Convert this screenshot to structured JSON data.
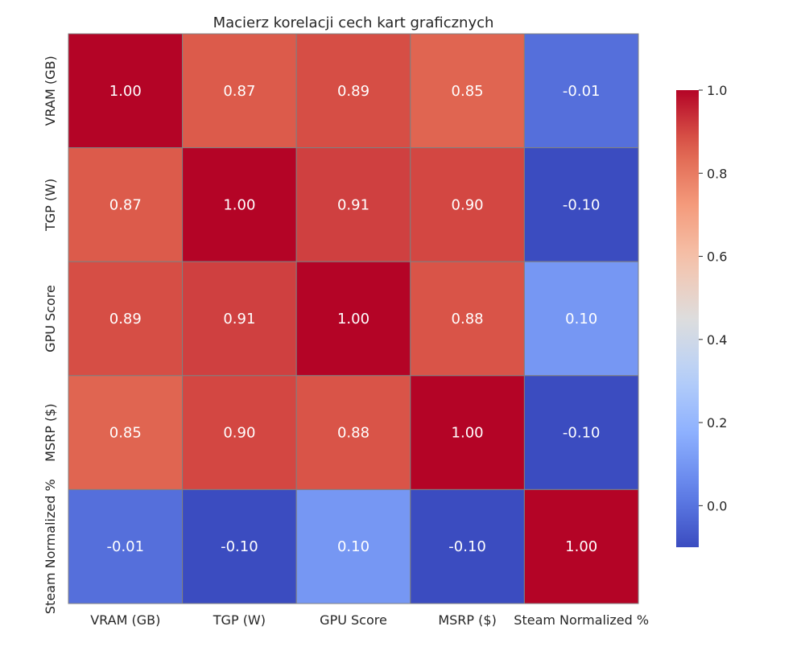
{
  "chart_data": {
    "type": "heatmap",
    "title": "Macierz korelacji cech kart graficznych",
    "xlabels": [
      "VRAM (GB)",
      "TGP (W)",
      "GPU Score",
      "MSRP ($)",
      "Steam Normalized %"
    ],
    "ylabels": [
      "VRAM (GB)",
      "TGP (W)",
      "GPU Score",
      "MSRP ($)",
      "Steam Normalized %"
    ],
    "values": [
      [
        1.0,
        0.87,
        0.89,
        0.85,
        -0.01
      ],
      [
        0.87,
        1.0,
        0.91,
        0.9,
        -0.1
      ],
      [
        0.89,
        0.91,
        1.0,
        0.88,
        0.1
      ],
      [
        0.85,
        0.9,
        0.88,
        1.0,
        -0.1
      ],
      [
        -0.01,
        -0.1,
        0.1,
        -0.1,
        1.0
      ]
    ],
    "colormap": "coolwarm",
    "vmin": -0.1,
    "vmax": 1.0,
    "colorbar_ticks": [
      0.0,
      0.2,
      0.4,
      0.6,
      0.8,
      1.0
    ],
    "colorbar_tick_labels": [
      "0.0",
      "0.2",
      "0.4",
      "0.6",
      "0.8",
      "1.0"
    ],
    "grid_line_color": "#808080",
    "annotation_color": "#ffffff"
  }
}
